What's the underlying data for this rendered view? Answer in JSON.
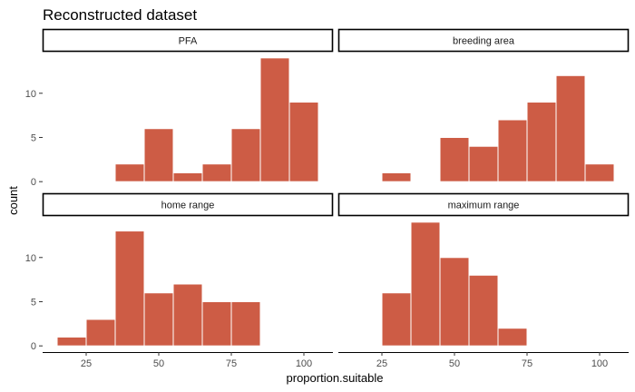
{
  "chart_data": {
    "type": "bar",
    "title": "Reconstructed dataset",
    "xlabel": "proportion.suitable",
    "ylabel": "count",
    "bar_color": "#cd5c45",
    "bin_width": 10,
    "xlim": [
      10,
      110
    ],
    "ylim": [
      -0.7,
      14.7
    ],
    "x_ticks": [
      25,
      50,
      75,
      100
    ],
    "y_ticks": [
      0,
      5,
      10
    ],
    "grid": false,
    "legend": "none",
    "facets": [
      {
        "name": "PFA",
        "bins": [
          {
            "x0": 35,
            "x1": 45,
            "count": 2
          },
          {
            "x0": 45,
            "x1": 55,
            "count": 6
          },
          {
            "x0": 55,
            "x1": 65,
            "count": 1
          },
          {
            "x0": 65,
            "x1": 75,
            "count": 2
          },
          {
            "x0": 75,
            "x1": 85,
            "count": 6
          },
          {
            "x0": 85,
            "x1": 95,
            "count": 14
          },
          {
            "x0": 95,
            "x1": 105,
            "count": 9
          }
        ]
      },
      {
        "name": "breeding area",
        "bins": [
          {
            "x0": 25,
            "x1": 35,
            "count": 1
          },
          {
            "x0": 45,
            "x1": 55,
            "count": 5
          },
          {
            "x0": 55,
            "x1": 65,
            "count": 4
          },
          {
            "x0": 65,
            "x1": 75,
            "count": 7
          },
          {
            "x0": 75,
            "x1": 85,
            "count": 9
          },
          {
            "x0": 85,
            "x1": 95,
            "count": 12
          },
          {
            "x0": 95,
            "x1": 105,
            "count": 2
          }
        ]
      },
      {
        "name": "home range",
        "bins": [
          {
            "x0": 15,
            "x1": 25,
            "count": 1
          },
          {
            "x0": 25,
            "x1": 35,
            "count": 3
          },
          {
            "x0": 35,
            "x1": 45,
            "count": 13
          },
          {
            "x0": 45,
            "x1": 55,
            "count": 6
          },
          {
            "x0": 55,
            "x1": 65,
            "count": 7
          },
          {
            "x0": 65,
            "x1": 75,
            "count": 5
          },
          {
            "x0": 75,
            "x1": 85,
            "count": 5
          }
        ]
      },
      {
        "name": "maximum range",
        "bins": [
          {
            "x0": 25,
            "x1": 35,
            "count": 6
          },
          {
            "x0": 35,
            "x1": 45,
            "count": 14
          },
          {
            "x0": 45,
            "x1": 55,
            "count": 10
          },
          {
            "x0": 55,
            "x1": 65,
            "count": 8
          },
          {
            "x0": 65,
            "x1": 75,
            "count": 2
          }
        ]
      }
    ]
  }
}
